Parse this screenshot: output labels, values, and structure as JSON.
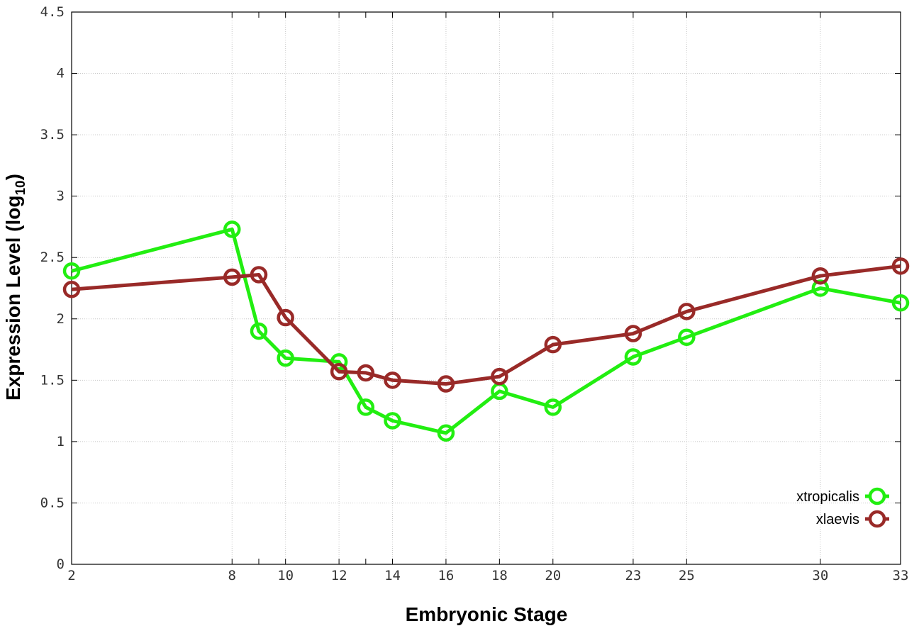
{
  "chart_data": {
    "type": "line",
    "xlabel": "Embryonic Stage",
    "ylabel_main": "Expression Level (log",
    "ylabel_sub": "10",
    "ylabel_close": ")",
    "x_ticks": [
      "2",
      "8",
      "10",
      "12",
      "14",
      "16",
      "18",
      "20",
      "23",
      "25",
      "30",
      "33"
    ],
    "x_tick_positions": [
      2,
      8,
      10,
      12,
      14,
      16,
      18,
      20,
      23,
      25,
      30,
      33
    ],
    "x_tick_minor": [
      9,
      13
    ],
    "xlim": [
      2,
      33
    ],
    "ylim": [
      0,
      4.5
    ],
    "y_ticks": [
      "0",
      "0.5",
      "1",
      "1.5",
      "2",
      "2.5",
      "3",
      "3.5",
      "4",
      "4.5"
    ],
    "y_tick_values": [
      0,
      0.5,
      1,
      1.5,
      2,
      2.5,
      3,
      3.5,
      4,
      4.5
    ],
    "grid": true,
    "legend_position": "bottom-right",
    "series": [
      {
        "name": "xtropicalis",
        "color": "#22ee11",
        "x": [
          2,
          8,
          9,
          10,
          12,
          13,
          14,
          16,
          18,
          20,
          23,
          25,
          30,
          33
        ],
        "y": [
          2.39,
          2.73,
          1.9,
          1.68,
          1.65,
          1.28,
          1.17,
          1.07,
          1.41,
          1.28,
          1.69,
          1.85,
          2.25,
          2.13
        ]
      },
      {
        "name": "xlaevis",
        "color": "#992a28",
        "x": [
          2,
          8,
          9,
          10,
          12,
          13,
          14,
          16,
          18,
          20,
          23,
          25,
          30,
          33
        ],
        "y": [
          2.24,
          2.34,
          2.36,
          2.01,
          1.57,
          1.56,
          1.5,
          1.47,
          1.53,
          1.79,
          1.88,
          2.06,
          2.35,
          2.43
        ]
      }
    ]
  }
}
